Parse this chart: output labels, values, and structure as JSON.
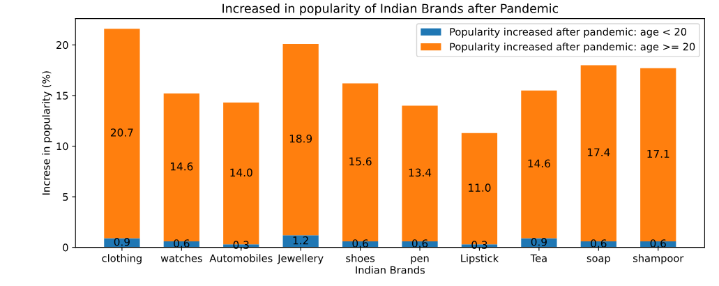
{
  "chart_data": {
    "type": "bar",
    "stacked": true,
    "title": "Increased in popularity of Indian Brands after Pandemic",
    "xlabel": "Indian Brands",
    "ylabel": "Increse in popularity (%)",
    "categories": [
      "clothing",
      "watches",
      "Automobiles",
      "Jewellery",
      "shoes",
      "pen",
      "Lipstick",
      "Tea",
      "soap",
      "shampoor"
    ],
    "series": [
      {
        "name": "Popularity increased after pandemic: age < 20",
        "color": "#1f77b4",
        "values": [
          0.9,
          0.6,
          0.3,
          1.2,
          0.6,
          0.6,
          0.3,
          0.9,
          0.6,
          0.6
        ],
        "value_labels": [
          "0.9",
          "0.6",
          "0.3",
          "1.2",
          "0.6",
          "0.6",
          "0.3",
          "0.9",
          "0.6",
          "0.6"
        ]
      },
      {
        "name": "Popularity increased after pandemic: age >= 20",
        "color": "#ff7f0e",
        "values": [
          20.7,
          14.6,
          14.0,
          18.9,
          15.6,
          13.4,
          11.0,
          14.6,
          17.4,
          17.1
        ],
        "value_labels": [
          "20.7",
          "14.6",
          "14.0",
          "18.9",
          "15.6",
          "13.4",
          "11.0",
          "14.6",
          "17.4",
          "17.1"
        ]
      }
    ],
    "ylim": [
      0,
      22.6
    ],
    "yticks": [
      0,
      5,
      10,
      15,
      20
    ],
    "grid": false,
    "legend": "top right"
  }
}
